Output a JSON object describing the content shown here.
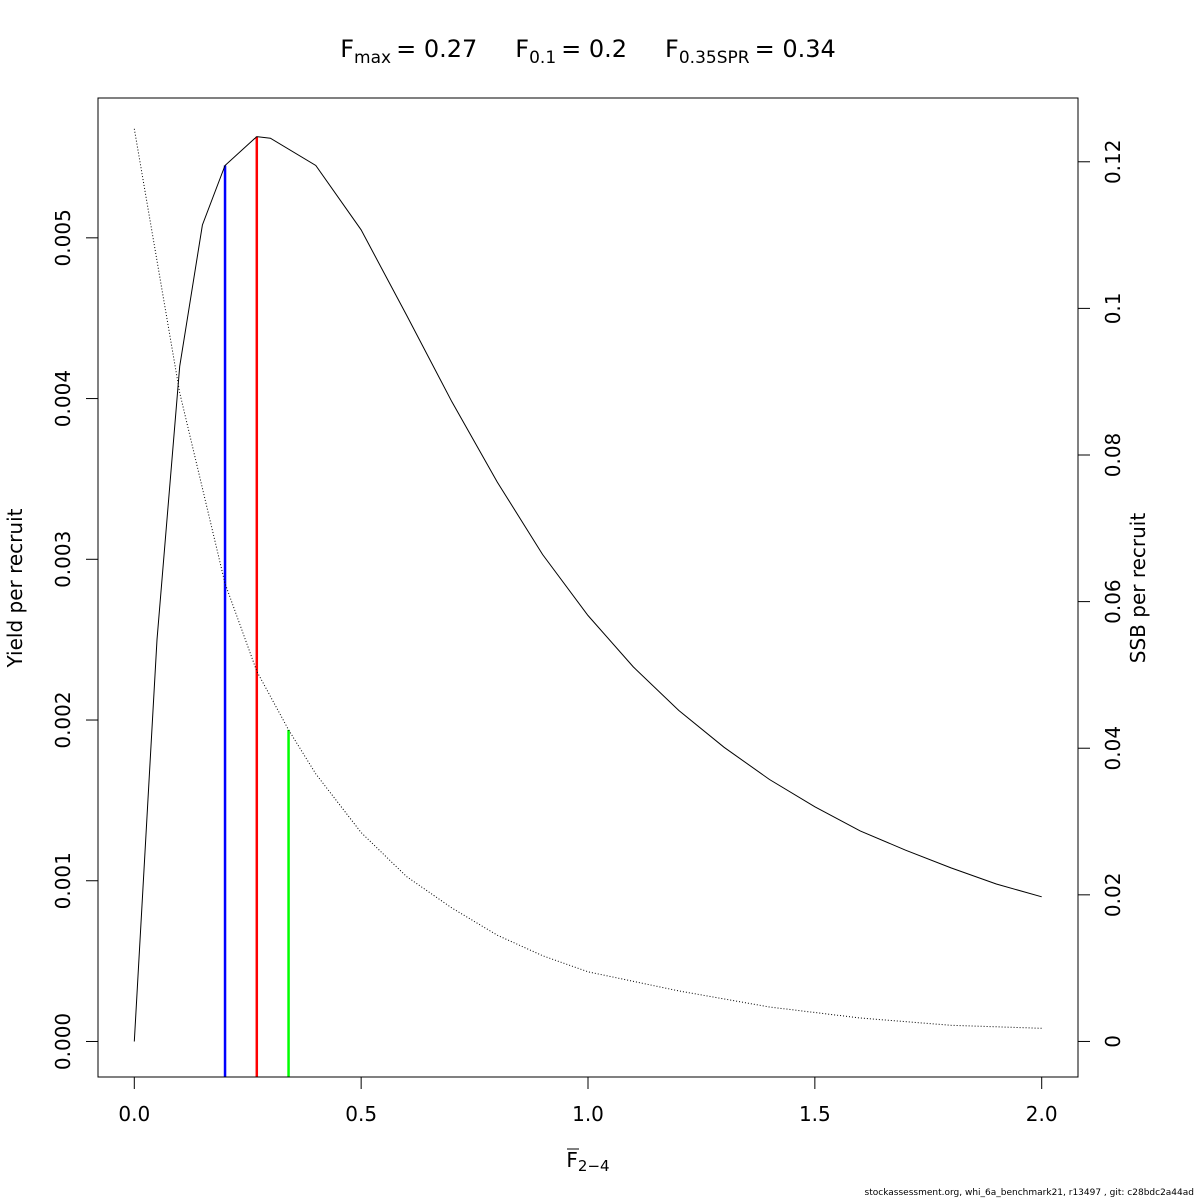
{
  "chart_data": {
    "type": "line",
    "title_parts": [
      {
        "base": "F",
        "sub": "max",
        "value": "= 0.27"
      },
      {
        "base": "F",
        "sub": "0.1",
        "value": "= 0.2"
      },
      {
        "base": "F",
        "sub": "0.35SPR",
        "value": "= 0.34"
      }
    ],
    "xlabel": {
      "base": "F",
      "sub": "2−4"
    },
    "ylabel_left": "Yield per recruit",
    "ylabel_right": "SSB per recruit",
    "xlim": [
      -0.08,
      2.08
    ],
    "ylim_left": [
      -0.000221,
      0.00587
    ],
    "ylim_right": [
      -0.00485,
      0.1287
    ],
    "x_ticks": [
      0,
      0.5,
      1,
      1.5,
      2
    ],
    "x_tick_labels": [
      "0.0",
      "0.5",
      "1.0",
      "1.5",
      "2.0"
    ],
    "y_left_ticks": [
      0,
      0.001,
      0.002,
      0.003,
      0.004,
      0.005
    ],
    "y_left_tick_labels": [
      "0.000",
      "0.001",
      "0.002",
      "0.003",
      "0.004",
      "0.005"
    ],
    "y_right_ticks": [
      0,
      0.02,
      0.04,
      0.06,
      0.08,
      0.1,
      0.12
    ],
    "y_right_tick_labels": [
      "0",
      "0.02",
      "0.04",
      "0.06",
      "0.08",
      "0.1",
      "0.12"
    ],
    "series": [
      {
        "name": "Yield per recruit",
        "axis": "left",
        "style": "solid",
        "color": "#000000",
        "x": [
          0,
          0.05,
          0.1,
          0.15,
          0.2,
          0.27,
          0.3,
          0.4,
          0.5,
          0.6,
          0.7,
          0.8,
          0.9,
          1.0,
          1.1,
          1.2,
          1.3,
          1.4,
          1.5,
          1.6,
          1.7,
          1.8,
          1.9,
          2.0
        ],
        "y": [
          0,
          0.0025,
          0.0042,
          0.00508,
          0.00545,
          0.00563,
          0.00562,
          0.00545,
          0.00505,
          0.00452,
          0.00398,
          0.00348,
          0.00303,
          0.00265,
          0.00233,
          0.00206,
          0.00183,
          0.00163,
          0.00146,
          0.00131,
          0.00119,
          0.00108,
          0.00098,
          0.0009
        ]
      },
      {
        "name": "SSB per recruit",
        "axis": "right",
        "style": "dotted",
        "color": "#000000",
        "x": [
          0,
          0.1,
          0.2,
          0.27,
          0.34,
          0.4,
          0.5,
          0.6,
          0.7,
          0.8,
          0.9,
          1.0,
          1.2,
          1.4,
          1.6,
          1.8,
          2.0
        ],
        "y": [
          0.1245,
          0.0885,
          0.0625,
          0.0505,
          0.0425,
          0.0365,
          0.0285,
          0.0225,
          0.0182,
          0.0145,
          0.0117,
          0.0095,
          0.0069,
          0.0047,
          0.0032,
          0.0022,
          0.0018
        ]
      }
    ],
    "reference_lines": [
      {
        "name": "F0.1",
        "x": 0.2,
        "y_top": 0.00545,
        "axis": "left",
        "color": "#0000ff"
      },
      {
        "name": "Fmax",
        "x": 0.27,
        "y_top": 0.00563,
        "axis": "left",
        "color": "#ff0000"
      },
      {
        "name": "F0.35SPR",
        "x": 0.34,
        "y_top": 0.0425,
        "axis": "right",
        "color": "#00ff00"
      }
    ]
  },
  "footer": {
    "text": "stockassessment.org, whi_6a_benchmark21, r13497 , git: c28bdc2a44ad"
  }
}
